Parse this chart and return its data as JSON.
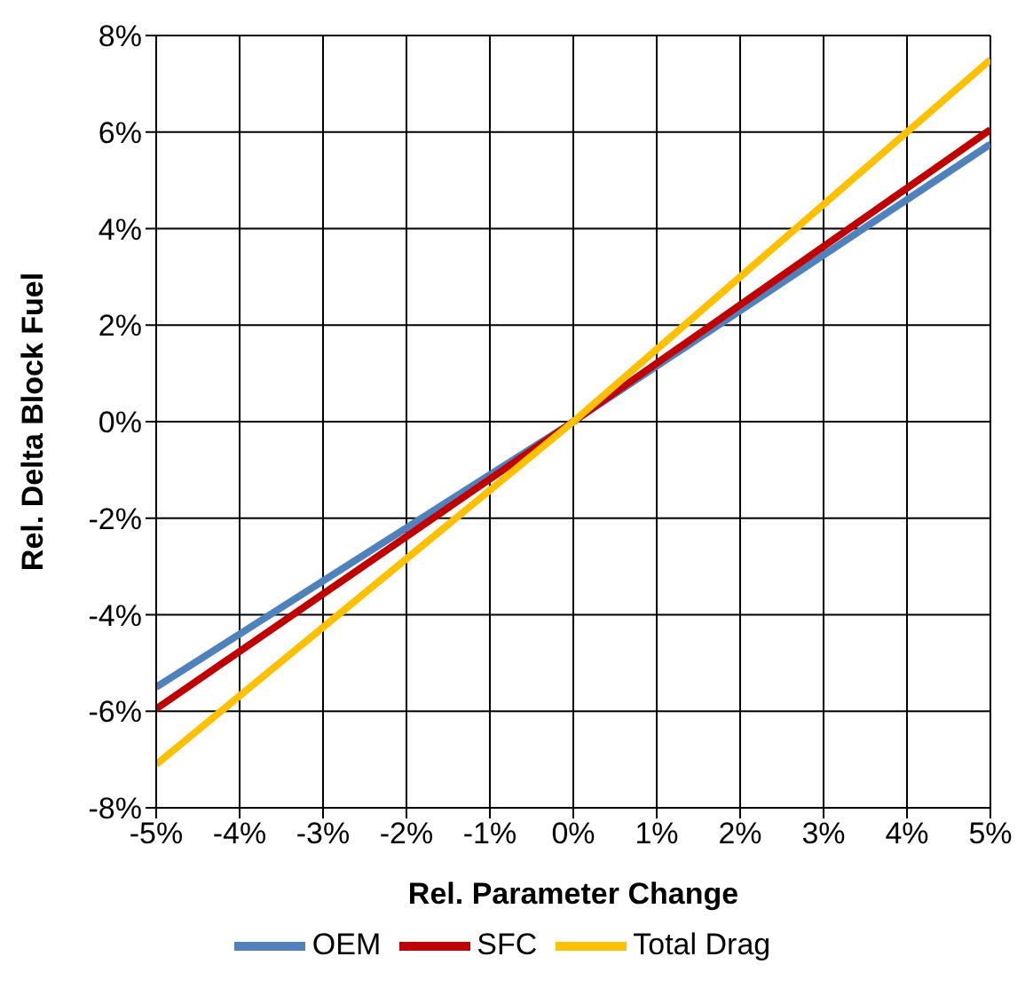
{
  "chart_data": {
    "type": "line",
    "xlabel": "Rel. Parameter Change",
    "ylabel": "Rel. Delta Block Fuel",
    "x": [
      -5,
      0,
      5
    ],
    "series": [
      {
        "name": "OEM",
        "color": "#4f81bd",
        "values": [
          -5.5,
          0,
          5.75
        ]
      },
      {
        "name": "SFC",
        "color": "#c00000",
        "values": [
          -5.95,
          0,
          6.05
        ]
      },
      {
        "name": "Total Drag",
        "color": "#ffc000",
        "values": [
          -7.1,
          0,
          7.5
        ]
      }
    ],
    "xlim": [
      -5,
      5
    ],
    "xticks": [
      {
        "value": -5,
        "label": "-5%"
      },
      {
        "value": -4,
        "label": "-4%"
      },
      {
        "value": -3,
        "label": "-3%"
      },
      {
        "value": -2,
        "label": "-2%"
      },
      {
        "value": -1,
        "label": "-1%"
      },
      {
        "value": 0,
        "label": "0%"
      },
      {
        "value": 1,
        "label": "1%"
      },
      {
        "value": 2,
        "label": "2%"
      },
      {
        "value": 3,
        "label": "3%"
      },
      {
        "value": 4,
        "label": "4%"
      },
      {
        "value": 5,
        "label": "5%"
      }
    ],
    "ylim": [
      -8,
      8
    ],
    "yticks": [
      {
        "value": -8,
        "label": "-8%"
      },
      {
        "value": -6,
        "label": "-6%"
      },
      {
        "value": -4,
        "label": "-4%"
      },
      {
        "value": -2,
        "label": "-2%"
      },
      {
        "value": 0,
        "label": "0%"
      },
      {
        "value": 2,
        "label": "2%"
      },
      {
        "value": 4,
        "label": "4%"
      },
      {
        "value": 6,
        "label": "6%"
      },
      {
        "value": 8,
        "label": "8%"
      }
    ],
    "grid": true,
    "legend": "bottom",
    "marker": "none",
    "line_style": "solid"
  }
}
